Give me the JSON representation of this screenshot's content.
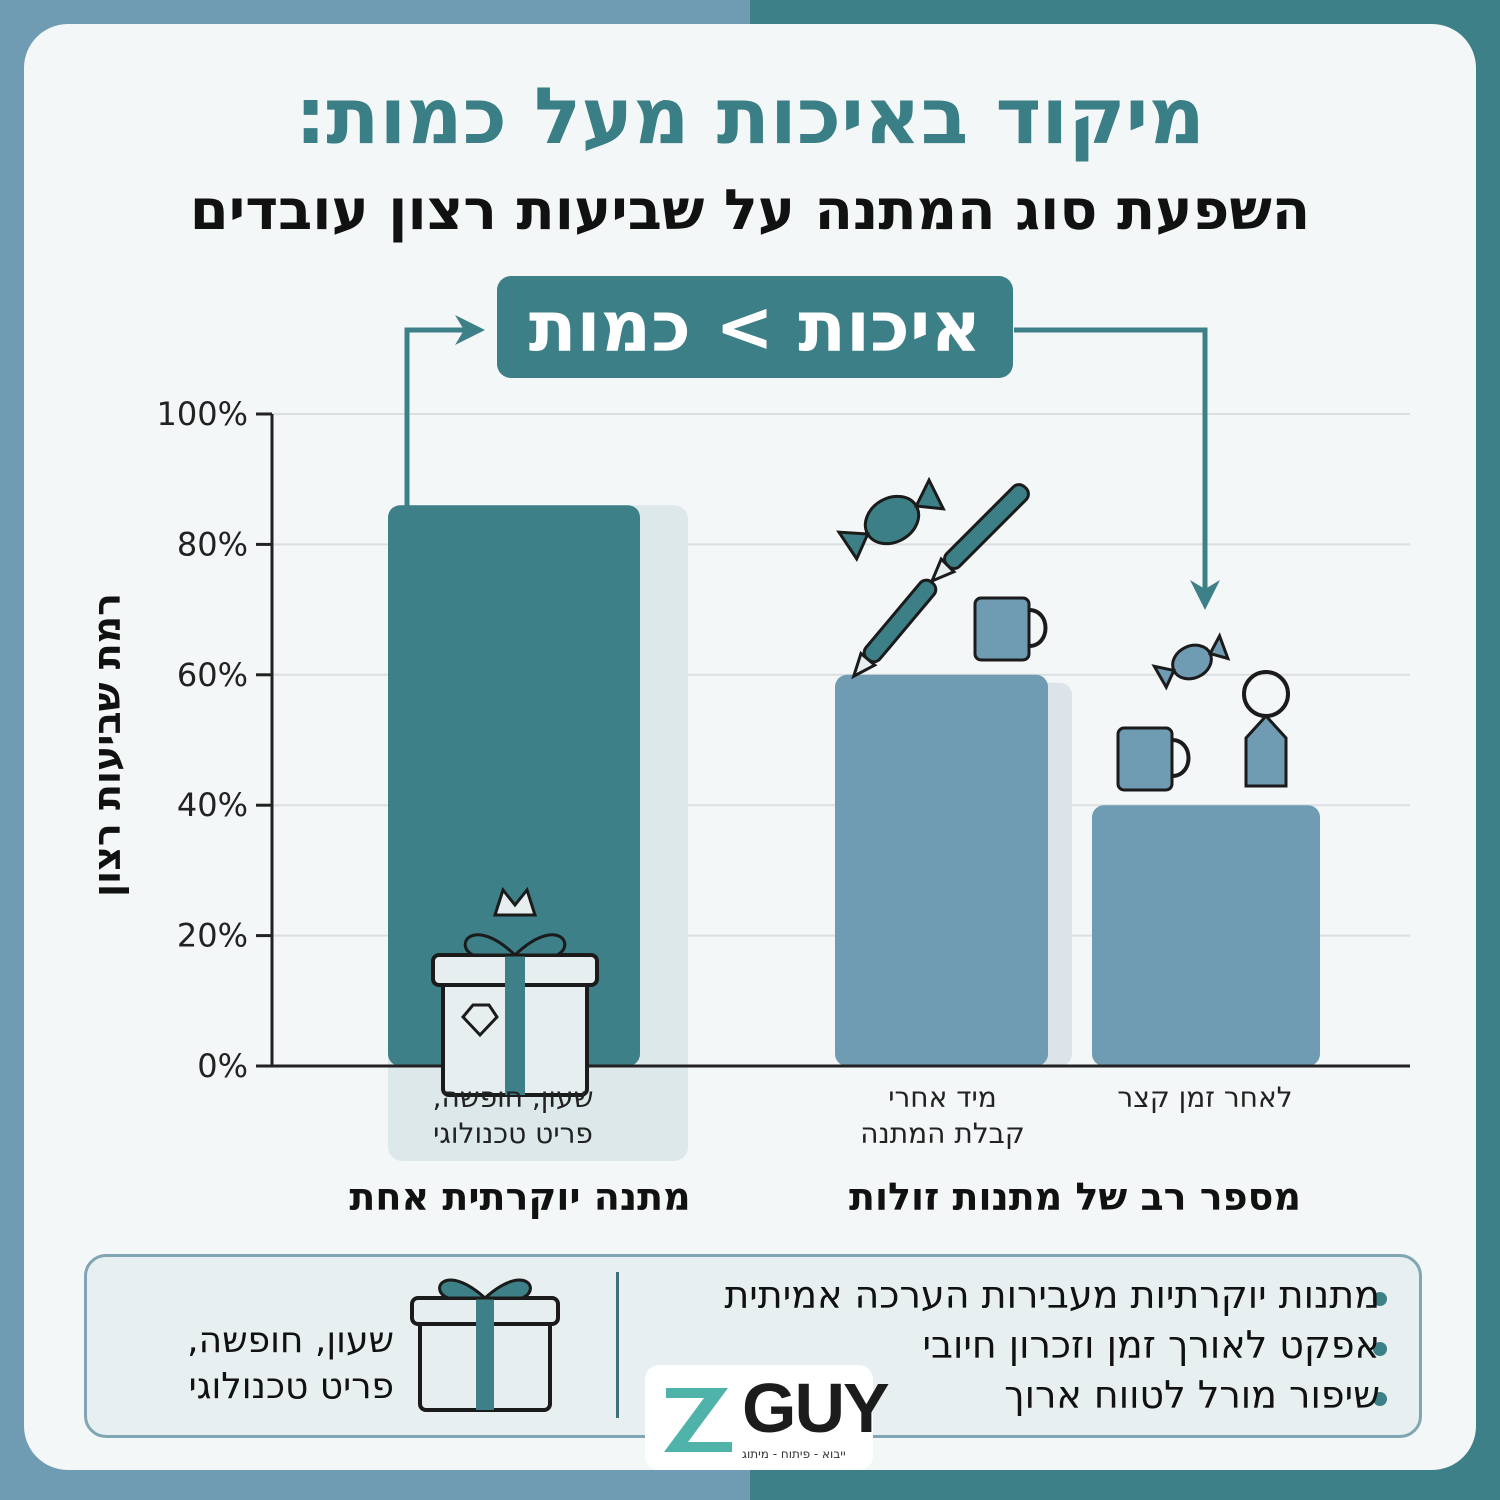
{
  "header": {
    "title": "מיקוד באיכות מעל כמות:",
    "subtitle": "השפעת סוג המתנה על שביעות רצון עובדים"
  },
  "callout": "איכות > כמות",
  "chart_data": {
    "type": "bar",
    "ylabel": "רמת שביעות רצון",
    "ylim": [
      0,
      100
    ],
    "y_ticks": [
      "0%",
      "20%",
      "40%",
      "60%",
      "80%",
      "100%"
    ],
    "grid": true,
    "categories": [
      "שעון, חופשה, פריט טכנולוגי",
      "מיד אחרי קבלת המתנה",
      "לאחר זמן קצר"
    ],
    "category_lines": [
      [
        "שעון, חופשה,",
        "פריט טכנולוגי"
      ],
      [
        "מיד אחרי",
        "קבלת המתנה"
      ],
      [
        "לאחר זמן קצר"
      ]
    ],
    "values": [
      86,
      60,
      40
    ],
    "groups": [
      "מתנה יוקרתית אחת",
      "מספר רב של מתנות זולות"
    ],
    "colors": {
      "premium": "#3d8088",
      "cheap": "#6f9bb3",
      "grid": "#dcdfe2",
      "axis": "#222222"
    }
  },
  "summary": {
    "bullets": [
      "מתנות יוקרתיות מעבירות הערכה אמיתית",
      "אפקט לאורך זמן וזכרון חיובי",
      "שיפור מורל לטווח ארוך"
    ],
    "gift_text": [
      "שעון, חופשה,",
      "פריט טכנולוגי"
    ]
  },
  "icons": [
    "gift-icon",
    "candy-icon",
    "pen-icon",
    "mug-icon",
    "keychain-icon",
    "arrow-icon"
  ],
  "logo": {
    "text": "GUY",
    "tag": "ייבוא - פיתוח - מיתוג"
  }
}
